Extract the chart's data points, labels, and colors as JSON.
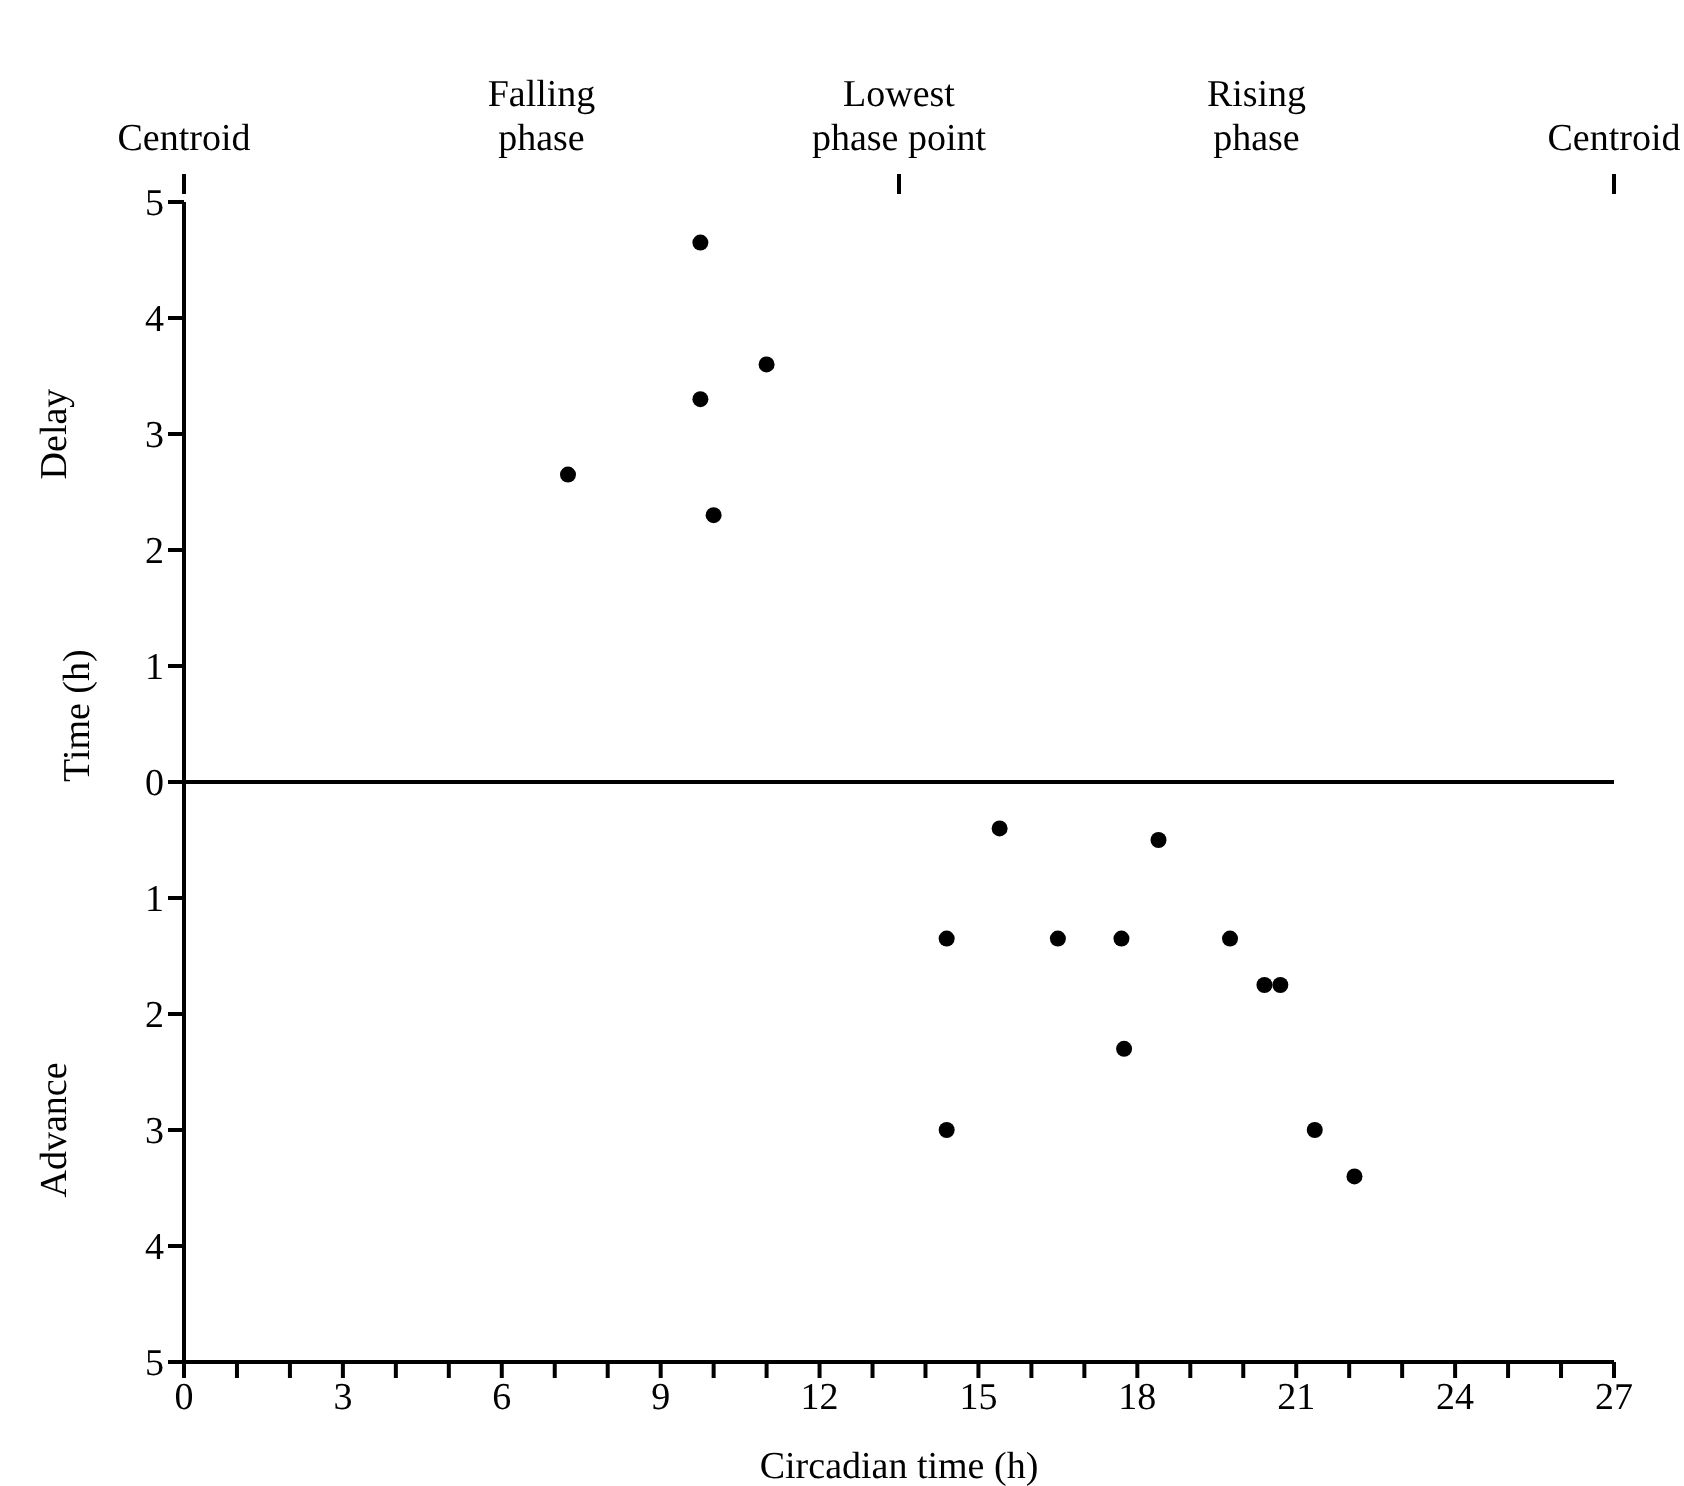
{
  "chart_data": {
    "type": "scatter",
    "xlabel": "Circadian time (h)",
    "ylabel": "Time (h)",
    "annotations": [
      "Centroid",
      "Falling phase",
      "Lowest phase point",
      "Rising phase",
      "Centroid",
      "Delay",
      "Advance"
    ],
    "series": [
      {
        "color": "#000000",
        "x": [
          7.25,
          9.75,
          9.75,
          10.0,
          11.0,
          15.4,
          18.4,
          14.4,
          16.5,
          17.7,
          19.75,
          20.4,
          20.7,
          17.75,
          14.4,
          21.35,
          22.1
        ],
        "values": [
          2.65,
          4.65,
          3.3,
          2.3,
          3.6,
          -0.4,
          -0.5,
          -1.35,
          -1.35,
          -1.35,
          -1.35,
          -1.75,
          -1.75,
          -2.3,
          -3.0,
          -3.0,
          -3.4
        ]
      }
    ],
    "xlim": [
      0,
      27
    ],
    "xticks": [
      0,
      {
        "value": 1,
        "label": null
      },
      {
        "value": 2,
        "label": null
      },
      3,
      {
        "value": 4,
        "label": null
      },
      {
        "value": 5,
        "label": null
      },
      6,
      {
        "value": 7,
        "label": null
      },
      {
        "value": 8,
        "label": null
      },
      9,
      {
        "value": 10,
        "label": null
      },
      {
        "value": 11,
        "label": null
      },
      12,
      {
        "value": 13,
        "label": null
      },
      {
        "value": 14,
        "label": null
      },
      15,
      {
        "value": 16,
        "label": null
      },
      {
        "value": 17,
        "label": null
      },
      18,
      {
        "value": 19,
        "label": null
      },
      {
        "value": 20,
        "label": null
      },
      21,
      {
        "value": 22,
        "label": null
      },
      {
        "value": 23,
        "label": null
      },
      24,
      {
        "value": 25,
        "label": null
      },
      {
        "value": 26,
        "label": null
      },
      27
    ],
    "ylim": [
      -5,
      5
    ],
    "yticks": [
      {
        "value": -5,
        "label": "5"
      },
      {
        "value": -4,
        "label": "4"
      },
      {
        "value": -3,
        "label": "3"
      },
      {
        "value": -2,
        "label": "2"
      },
      {
        "value": -1,
        "label": "1"
      },
      0,
      1,
      2,
      3,
      4,
      5
    ],
    "ref_lines": [
      {
        "axis": "y",
        "value": 0
      }
    ],
    "grid": false,
    "legend": false,
    "marker": "circle"
  }
}
